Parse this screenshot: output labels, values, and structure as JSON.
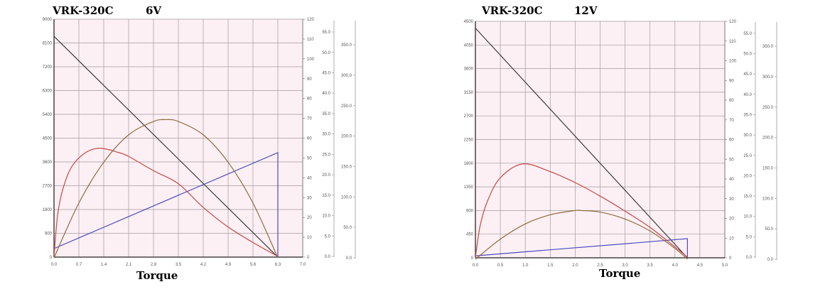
{
  "chart_data": [
    {
      "type": "line",
      "title": "VRK-320C",
      "voltage": "6V",
      "xlabel": "Torque",
      "xlim": [
        0,
        7.0
      ],
      "xticks": [
        "0.0",
        "0.7",
        "1.4",
        "2.1",
        "2.8",
        "3.5",
        "4.2",
        "4.9",
        "5.6",
        "6.3",
        "7.0"
      ],
      "ylim_left": [
        0,
        9000
      ],
      "yticks_left": [
        "0",
        "900",
        "1800",
        "2700",
        "3600",
        "4500",
        "5400",
        "6300",
        "7200",
        "8100",
        "9000"
      ],
      "ylim_right": [
        0,
        120
      ],
      "yticks_right": [
        "0",
        "10",
        "20",
        "30",
        "40",
        "50",
        "60",
        "70",
        "80",
        "90",
        "100",
        "110",
        "120"
      ],
      "yticks_efficiency": [
        "0.0",
        "5.0",
        "10.0",
        "15.0",
        "20.0",
        "25.0",
        "30.0",
        "35.0",
        "40.0",
        "45.0",
        "50.0",
        "55.0"
      ],
      "yticks_power": [
        "0.0",
        "50.0",
        "100.0",
        "150.0",
        "200.0",
        "250.0",
        "300.0",
        "350.0"
      ],
      "grid": true,
      "colors": {
        "background": "#fdf0f4",
        "grid": "#a09a9c",
        "speed": "#3a3a3a",
        "current": "#4b4bbf",
        "efficiency": "#c84646",
        "power": "#8f6a3e"
      },
      "series": [
        {
          "key": "speed",
          "axis": "left",
          "points": [
            [
              0,
              8350
            ],
            [
              6.3,
              0
            ]
          ]
        },
        {
          "key": "current",
          "axis": "right",
          "points": [
            [
              0,
              4.3
            ],
            [
              6.3,
              52.7
            ],
            [
              6.3,
              0
            ]
          ]
        },
        {
          "key": "efficiency",
          "axis": "efficiency",
          "points": [
            [
              0,
              0
            ],
            [
              0.1,
              10
            ],
            [
              0.25,
              16.5
            ],
            [
              0.5,
              22
            ],
            [
              0.9,
              25.5
            ],
            [
              1.3,
              26.5
            ],
            [
              1.8,
              25.5
            ],
            [
              2.1,
              24.5
            ],
            [
              2.8,
              21
            ],
            [
              3.5,
              17.8
            ],
            [
              4.2,
              12
            ],
            [
              4.9,
              7.2
            ],
            [
              5.6,
              3.4
            ],
            [
              6.3,
              0
            ]
          ]
        },
        {
          "key": "power",
          "axis": "power",
          "points": [
            [
              0,
              0
            ],
            [
              0.7,
              90
            ],
            [
              1.4,
              157
            ],
            [
              2.1,
              202
            ],
            [
              2.8,
              224
            ],
            [
              3.15,
              227
            ],
            [
              3.5,
              224
            ],
            [
              4.2,
              202
            ],
            [
              4.9,
              157
            ],
            [
              5.6,
              90
            ],
            [
              6.3,
              0
            ]
          ]
        }
      ]
    },
    {
      "type": "line",
      "title": "VRK-320C",
      "voltage": "12V",
      "xlabel": "Torque",
      "xlim": [
        0,
        5.0
      ],
      "xticks": [
        "0.0",
        "0.5",
        "1.0",
        "1.5",
        "2.0",
        "2.5",
        "3.0",
        "3.5",
        "4.0",
        "4.5",
        "5.0"
      ],
      "ylim_left": [
        0,
        4500
      ],
      "yticks_left": [
        "0",
        "450",
        "900",
        "1350",
        "1800",
        "2250",
        "2700",
        "3150",
        "3600",
        "4050",
        "4500"
      ],
      "ylim_right": [
        0,
        120
      ],
      "yticks_right": [
        "0",
        "10",
        "20",
        "30",
        "40",
        "50",
        "60",
        "70",
        "80",
        "90",
        "100",
        "110",
        "120"
      ],
      "yticks_efficiency": [
        "0.0",
        "5.0",
        "10.0",
        "15.0",
        "20.0",
        "25.0",
        "30.0",
        "35.0",
        "40.0",
        "45.0",
        "50.0",
        "55.0"
      ],
      "yticks_power": [
        "0.0",
        "50.0",
        "100.0",
        "150.0",
        "200.0",
        "250.0",
        "300.0",
        "350.0"
      ],
      "grid": true,
      "colors": {
        "background": "#fdf0f4",
        "grid": "#a09a9c",
        "speed": "#3a3a3a",
        "current": "#4b4bbf",
        "efficiency": "#c84646",
        "power": "#8f6a3e"
      },
      "series": [
        {
          "key": "speed",
          "axis": "left",
          "points": [
            [
              0,
              4370
            ],
            [
              4.25,
              0
            ]
          ]
        },
        {
          "key": "current",
          "axis": "right",
          "points": [
            [
              0,
              1
            ],
            [
              4.25,
              9.7
            ],
            [
              4.25,
              0
            ]
          ]
        },
        {
          "key": "efficiency",
          "axis": "efficiency",
          "points": [
            [
              0,
              0
            ],
            [
              0.1,
              8
            ],
            [
              0.25,
              14
            ],
            [
              0.5,
              19.5
            ],
            [
              0.95,
              22.9
            ],
            [
              1.5,
              21
            ],
            [
              2.0,
              18.3
            ],
            [
              2.5,
              15
            ],
            [
              3.0,
              11.3
            ],
            [
              3.5,
              7.3
            ],
            [
              4.0,
              2.5
            ],
            [
              4.25,
              0
            ]
          ]
        },
        {
          "key": "power",
          "axis": "power",
          "points": [
            [
              0,
              0
            ],
            [
              0.5,
              33
            ],
            [
              1.0,
              58
            ],
            [
              1.5,
              73
            ],
            [
              2.0,
              80
            ],
            [
              2.125,
              80
            ],
            [
              2.5,
              77.5
            ],
            [
              3.0,
              66
            ],
            [
              3.5,
              46.5
            ],
            [
              4.0,
              17.7
            ],
            [
              4.25,
              0
            ]
          ]
        }
      ]
    }
  ]
}
